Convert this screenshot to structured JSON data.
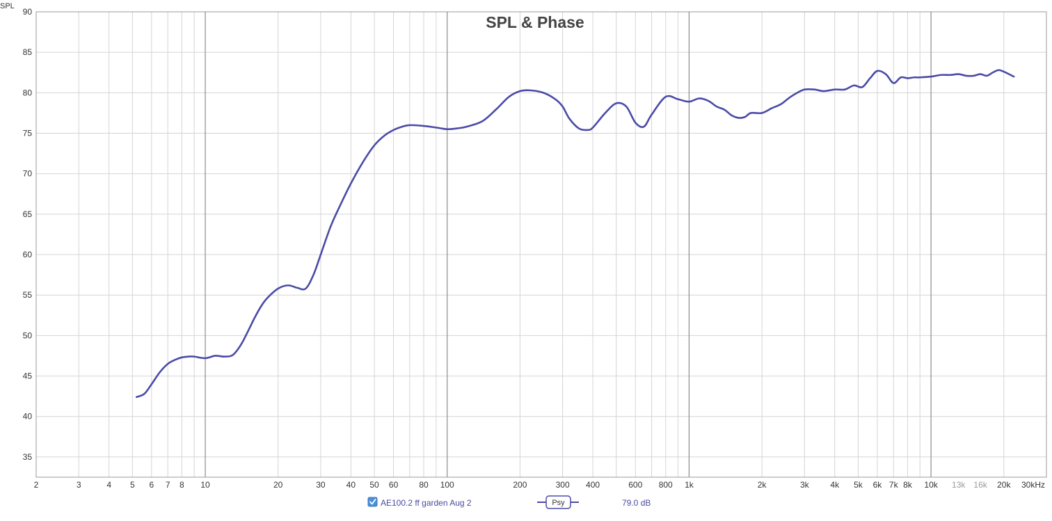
{
  "chart_data": {
    "type": "line",
    "title": "SPL & Phase",
    "ylabel": "SPL",
    "xlabel": "",
    "x_scale": "log",
    "xlim": [
      2,
      30000
    ],
    "ylim": [
      32.5,
      90
    ],
    "grid": true,
    "y_ticks": [
      35,
      40,
      45,
      50,
      55,
      60,
      65,
      70,
      75,
      80,
      85,
      90
    ],
    "x_tick_labels": [
      {
        "value": 2,
        "label": "2"
      },
      {
        "value": 3,
        "label": "3"
      },
      {
        "value": 4,
        "label": "4"
      },
      {
        "value": 5,
        "label": "5"
      },
      {
        "value": 6,
        "label": "6"
      },
      {
        "value": 7,
        "label": "7"
      },
      {
        "value": 8,
        "label": "8"
      },
      {
        "value": 10,
        "label": "10"
      },
      {
        "value": 20,
        "label": "20"
      },
      {
        "value": 30,
        "label": "30"
      },
      {
        "value": 40,
        "label": "40"
      },
      {
        "value": 50,
        "label": "50"
      },
      {
        "value": 60,
        "label": "60"
      },
      {
        "value": 80,
        "label": "80"
      },
      {
        "value": 100,
        "label": "100"
      },
      {
        "value": 200,
        "label": "200"
      },
      {
        "value": 300,
        "label": "300"
      },
      {
        "value": 400,
        "label": "400"
      },
      {
        "value": 600,
        "label": "600"
      },
      {
        "value": 800,
        "label": "800"
      },
      {
        "value": 1000,
        "label": "1k"
      },
      {
        "value": 2000,
        "label": "2k"
      },
      {
        "value": 3000,
        "label": "3k"
      },
      {
        "value": 4000,
        "label": "4k"
      },
      {
        "value": 5000,
        "label": "5k"
      },
      {
        "value": 6000,
        "label": "6k"
      },
      {
        "value": 7000,
        "label": "7k"
      },
      {
        "value": 8000,
        "label": "8k"
      },
      {
        "value": 10000,
        "label": "10k"
      },
      {
        "value": 13000,
        "label": "13k",
        "muted": true
      },
      {
        "value": 16000,
        "label": "16k",
        "muted": true
      },
      {
        "value": 20000,
        "label": "20k"
      },
      {
        "value": 30000,
        "label": "30kHz"
      }
    ],
    "series": [
      {
        "name": "AE100.2 ff garden Aug 2",
        "color": "#4a4aa8",
        "x": [
          5.2,
          5.6,
          6.0,
          6.5,
          7.0,
          7.5,
          8.0,
          8.5,
          9.0,
          10.0,
          11.0,
          12.0,
          13.0,
          14.0,
          15.0,
          16.0,
          17.0,
          18.0,
          20.0,
          22.0,
          24.0,
          26.0,
          28.0,
          30.0,
          33.0,
          36.0,
          40.0,
          45.0,
          50.0,
          55.0,
          60.0,
          65.0,
          70.0,
          80.0,
          90.0,
          100.0,
          110.0,
          120.0,
          140.0,
          160.0,
          180.0,
          200.0,
          220.0,
          250.0,
          280.0,
          300.0,
          320.0,
          350.0,
          380.0,
          400.0,
          450.0,
          500.0,
          550.0,
          600.0,
          650.0,
          700.0,
          800.0,
          900.0,
          1000.0,
          1100.0,
          1200.0,
          1300.0,
          1400.0,
          1500.0,
          1600.0,
          1700.0,
          1800.0,
          2000.0,
          2200.0,
          2400.0,
          2600.0,
          2800.0,
          3000.0,
          3300.0,
          3600.0,
          4000.0,
          4400.0,
          4800.0,
          5200.0,
          5600.0,
          6000.0,
          6500.0,
          7000.0,
          7500.0,
          8000.0,
          8500.0,
          9000.0,
          10000.0,
          11000.0,
          12000.0,
          13000.0,
          14000.0,
          15000.0,
          16000.0,
          17000.0,
          18000.0,
          19000.0,
          20000.0,
          22000.0
        ],
        "y": [
          42.4,
          42.8,
          44.0,
          45.5,
          46.5,
          47.0,
          47.3,
          47.4,
          47.4,
          47.2,
          47.5,
          47.4,
          47.6,
          48.8,
          50.5,
          52.2,
          53.6,
          54.6,
          55.8,
          56.2,
          55.9,
          55.8,
          57.5,
          60.0,
          63.5,
          66.0,
          68.8,
          71.5,
          73.5,
          74.7,
          75.4,
          75.8,
          76.0,
          75.9,
          75.7,
          75.5,
          75.6,
          75.8,
          76.5,
          78.0,
          79.5,
          80.2,
          80.3,
          80.0,
          79.2,
          78.3,
          76.8,
          75.6,
          75.4,
          75.7,
          77.5,
          78.7,
          78.3,
          76.3,
          75.8,
          77.3,
          79.5,
          79.2,
          78.9,
          79.3,
          79.0,
          78.3,
          77.9,
          77.2,
          76.9,
          77.0,
          77.5,
          77.5,
          78.1,
          78.6,
          79.4,
          80.0,
          80.4,
          80.4,
          80.2,
          80.4,
          80.4,
          80.9,
          80.7,
          81.8,
          82.7,
          82.3,
          81.2,
          81.9,
          81.8,
          81.9,
          81.9,
          82.0,
          82.2,
          82.2,
          82.3,
          82.1,
          82.1,
          82.3,
          82.1,
          82.5,
          82.8,
          82.6,
          82.0
        ]
      }
    ],
    "legend": {
      "checkbox_checked": true,
      "series_label": "AE100.2 ff garden Aug 2",
      "smoothing_label": "Psy",
      "value_readout": "79.0 dB"
    }
  }
}
